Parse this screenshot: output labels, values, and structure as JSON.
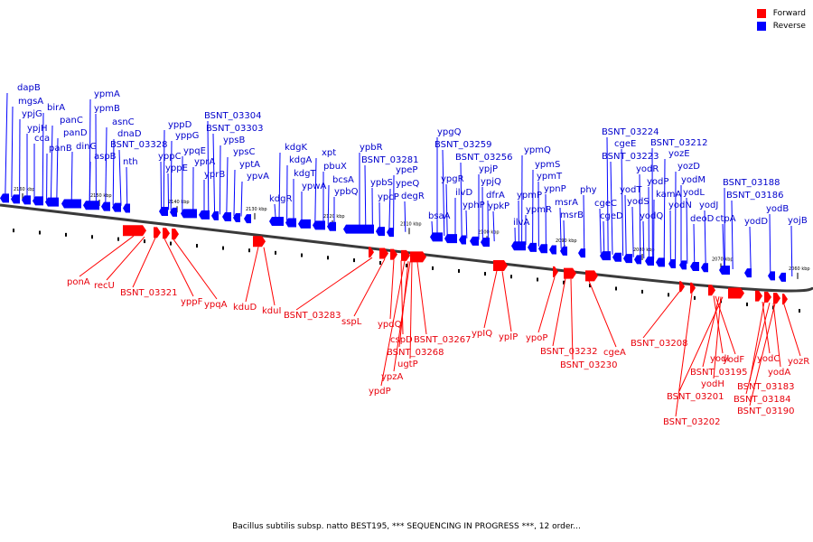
{
  "legend": {
    "forward_label": "Forward",
    "reverse_label": "Reverse",
    "forward_color": "#ff0000",
    "reverse_color": "#0000ff"
  },
  "caption": "Bacillus subtilis subsp. natto BEST195, *** SEQUENCING IN PROGRESS ***, 12 order...",
  "ticks": [
    "2160 kbp",
    "2150 kbp",
    "2140 kbp",
    "2130 kbp",
    "2120 kbp",
    "2110 kbp",
    "2100 kbp",
    "2090 kbp",
    "2080 kbp",
    "2070 kbp",
    "2060 kbp"
  ],
  "reverse_genes": [
    "dapB",
    "mgsA",
    "ypjG",
    "ypjH",
    "cca",
    "birA",
    "panC",
    "panD",
    "panB",
    "dinG",
    "aspB",
    "ypmA",
    "ypmB",
    "asnC",
    "dnaD",
    "BSNT_03328",
    "nth",
    "yppD",
    "yppG",
    "yppC",
    "yppE",
    "ypqE",
    "yprA",
    "yprB",
    "BSNT_03304",
    "BSNT_03303",
    "ypsB",
    "ypsC",
    "yptA",
    "ypvA",
    "kdgK",
    "kdgA",
    "kdgT",
    "kdgR",
    "ypwA",
    "xpt",
    "pbuX",
    "bcsA",
    "ypbQ",
    "ypbR",
    "BSNT_03281",
    "ypbS",
    "ypeP",
    "ypeQ",
    "ypcP",
    "degR",
    "ypgQ",
    "BSNT_03259",
    "BSNT_03256",
    "ypgR",
    "ilvD",
    "ypjP",
    "ypjQ",
    "yphP",
    "dfrA",
    "ypkP",
    "bsaA",
    "ypmQ",
    "ypmS",
    "ypmT",
    "ypnP",
    "ypmP",
    "ypmR",
    "ilvA",
    "msrA",
    "msrB",
    "phy",
    "cgeC",
    "cgeD",
    "BSNT_03224",
    "cgeE",
    "BSNT_03223",
    "BSNT_03212",
    "yozE",
    "yodT",
    "yodS",
    "yodR",
    "yodP",
    "yodQ",
    "kamA",
    "yozD",
    "yodM",
    "yodN",
    "yodL",
    "deoD",
    "yodJ",
    "BSNT_03188",
    "BSNT_03186",
    "ctpA",
    "yodD",
    "yodB",
    "yojB"
  ],
  "forward_genes": [
    "ponA",
    "recU",
    "BSNT_03321",
    "yppF",
    "ypqA",
    "kduD",
    "kduI",
    "BSNT_03283",
    "sspL",
    "ypdQ",
    "cspD",
    "BSNT_03268",
    "ugtP",
    "ypzA",
    "ypdP",
    "BSNT_03267",
    "ypIQ",
    "ypIP",
    "ypoP",
    "BSNT_03232",
    "BSNT_03230",
    "cgeA",
    "BSNT_03208",
    "yodI",
    "yodF",
    "BSNT_03195",
    "yodH",
    "BSNT_03201",
    "BSNT_03202",
    "yodC",
    "BSNT_03183",
    "yodA",
    "BSNT_03184",
    "BSNT_03190",
    "yozR"
  ]
}
